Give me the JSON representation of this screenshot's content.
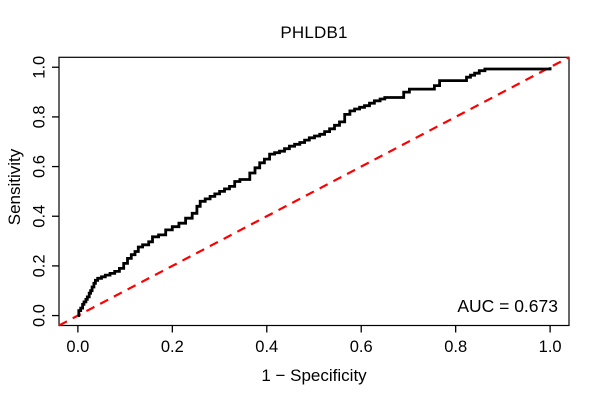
{
  "chart_data": {
    "type": "line",
    "subtype": "roc-curve",
    "title": "PHLDB1",
    "xlabel": "1 − Specificity",
    "ylabel": "Sensitivity",
    "annotation": "AUC = 0.673",
    "auc_value": 0.673,
    "grid": false,
    "legend_position": "none",
    "xlim": [
      -0.04,
      1.04
    ],
    "ylim": [
      -0.04,
      1.04
    ],
    "x_ticks": {
      "values": [
        0,
        0.2,
        0.4,
        0.6,
        0.8,
        1.0
      ],
      "labels": [
        "0.0",
        "0.2",
        "0.4",
        "0.6",
        "0.8",
        "1.0"
      ]
    },
    "y_ticks": {
      "values": [
        0,
        0.2,
        0.4,
        0.6,
        0.8,
        1.0
      ],
      "labels": [
        "0.0",
        "0.2",
        "0.4",
        "0.6",
        "0.8",
        "1.0"
      ]
    },
    "colors": {
      "roc_curve": "#000000",
      "diagonal": "#FF0000",
      "text": "#000000",
      "background": "#FFFFFF",
      "box": "#000000"
    },
    "diagonal": {
      "from": [
        0,
        0
      ],
      "to": [
        1,
        1
      ],
      "style": "dashed"
    },
    "series": [
      {
        "name": "ROC curve",
        "points": [
          [
            0,
            0
          ],
          [
            0.002,
            0.02
          ],
          [
            0.006,
            0.03
          ],
          [
            0.01,
            0.045
          ],
          [
            0.013,
            0.055
          ],
          [
            0.017,
            0.065
          ],
          [
            0.02,
            0.075
          ],
          [
            0.024,
            0.09
          ],
          [
            0.027,
            0.1
          ],
          [
            0.03,
            0.115
          ],
          [
            0.034,
            0.13
          ],
          [
            0.037,
            0.142
          ],
          [
            0.042,
            0.15
          ],
          [
            0.05,
            0.156
          ],
          [
            0.058,
            0.163
          ],
          [
            0.068,
            0.17
          ],
          [
            0.078,
            0.178
          ],
          [
            0.088,
            0.19
          ],
          [
            0.097,
            0.21
          ],
          [
            0.105,
            0.23
          ],
          [
            0.113,
            0.245
          ],
          [
            0.121,
            0.258
          ],
          [
            0.128,
            0.276
          ],
          [
            0.137,
            0.285
          ],
          [
            0.15,
            0.297
          ],
          [
            0.158,
            0.317
          ],
          [
            0.171,
            0.325
          ],
          [
            0.186,
            0.345
          ],
          [
            0.2,
            0.358
          ],
          [
            0.214,
            0.372
          ],
          [
            0.228,
            0.392
          ],
          [
            0.242,
            0.412
          ],
          [
            0.252,
            0.44
          ],
          [
            0.259,
            0.46
          ],
          [
            0.28,
            0.48
          ],
          [
            0.3,
            0.5
          ],
          [
            0.321,
            0.52
          ],
          [
            0.332,
            0.54
          ],
          [
            0.343,
            0.548
          ],
          [
            0.355,
            0.548
          ],
          [
            0.364,
            0.574
          ],
          [
            0.375,
            0.595
          ],
          [
            0.385,
            0.615
          ],
          [
            0.395,
            0.63
          ],
          [
            0.406,
            0.65
          ],
          [
            0.427,
            0.662
          ],
          [
            0.448,
            0.682
          ],
          [
            0.47,
            0.697
          ],
          [
            0.49,
            0.716
          ],
          [
            0.512,
            0.73
          ],
          [
            0.533,
            0.752
          ],
          [
            0.554,
            0.78
          ],
          [
            0.565,
            0.81
          ],
          [
            0.576,
            0.824
          ],
          [
            0.586,
            0.832
          ],
          [
            0.607,
            0.845
          ],
          [
            0.628,
            0.865
          ],
          [
            0.64,
            0.872
          ],
          [
            0.65,
            0.878
          ],
          [
            0.68,
            0.878
          ],
          [
            0.69,
            0.9
          ],
          [
            0.702,
            0.912
          ],
          [
            0.744,
            0.912
          ],
          [
            0.755,
            0.926
          ],
          [
            0.766,
            0.946
          ],
          [
            0.817,
            0.946
          ],
          [
            0.823,
            0.96
          ],
          [
            0.84,
            0.976
          ],
          [
            0.85,
            0.986
          ],
          [
            0.862,
            0.993
          ],
          [
            0.988,
            0.993
          ],
          [
            1,
            1
          ]
        ]
      }
    ]
  }
}
